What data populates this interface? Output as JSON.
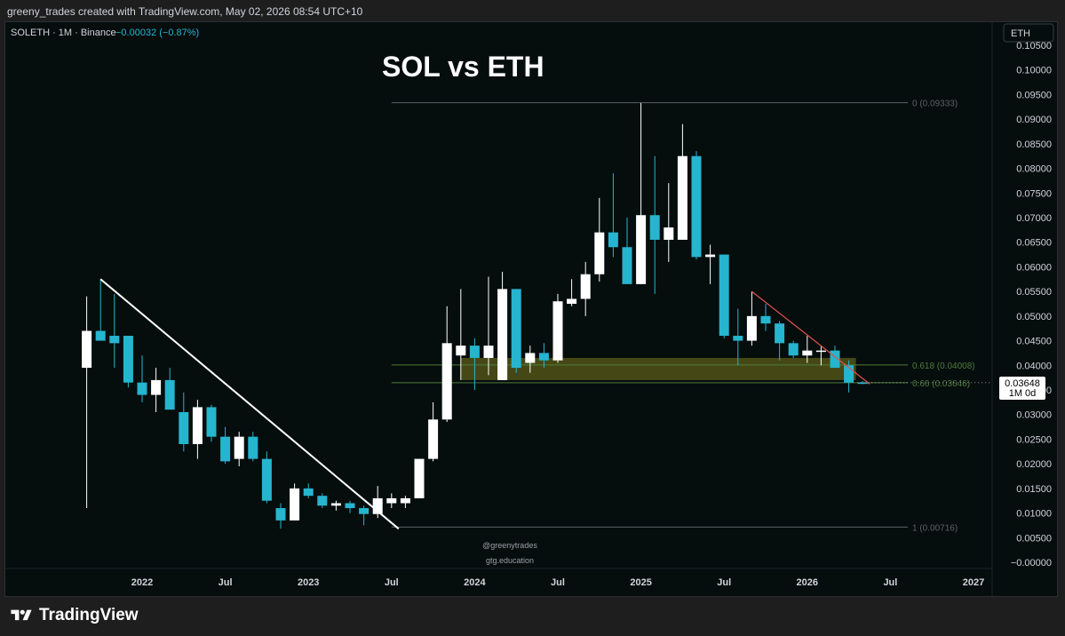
{
  "header": {
    "creator_line": "greeny_trades created with TradingView.com, May 02, 2026 08:54 UTC+10"
  },
  "legend": {
    "symbol": "SOLETH · 1M · Binance",
    "change": "−0.00032 (−0.87%)"
  },
  "currency_button": "ETH",
  "overlay_title": "SOL vs ETH",
  "watermarks": [
    "@greenytrades",
    "gtg.education"
  ],
  "price_tag": {
    "price": "0.03648",
    "interval": "1M 0d"
  },
  "footer": {
    "brand": "TradingView"
  },
  "colors": {
    "background": "#060d0d",
    "up_candle": "#ffffff",
    "down_candle": "#26b5cf",
    "fib_zone": "#7a7a1e",
    "resistance_line": "#e05252",
    "trendline": "#ffffff"
  },
  "chart_data": {
    "type": "candlestick",
    "title": "SOL vs ETH",
    "symbol": "SOLETH",
    "interval": "1M",
    "exchange": "Binance",
    "ylim": [
      0,
      0.105
    ],
    "xlim": [
      "2021-08",
      "2027-03"
    ],
    "yticks": [
      "0.10500",
      "0.10000",
      "0.09500",
      "0.09000",
      "0.08500",
      "0.08000",
      "0.07500",
      "0.07000",
      "0.06500",
      "0.06000",
      "0.05500",
      "0.05000",
      "0.04500",
      "0.04000",
      "0.03500",
      "0.03000",
      "0.02500",
      "0.02000",
      "0.01500",
      "0.01000",
      "0.00500",
      "−0.00000"
    ],
    "xticks": [
      {
        "label": "2022",
        "date": "2022-01",
        "bold": true
      },
      {
        "label": "Jul",
        "date": "2022-07",
        "bold": false
      },
      {
        "label": "2023",
        "date": "2023-01",
        "bold": true
      },
      {
        "label": "Jul",
        "date": "2023-07",
        "bold": false
      },
      {
        "label": "2024",
        "date": "2024-01",
        "bold": true
      },
      {
        "label": "Jul",
        "date": "2024-07",
        "bold": false
      },
      {
        "label": "2025",
        "date": "2025-01",
        "bold": true
      },
      {
        "label": "Jul",
        "date": "2025-07",
        "bold": false
      },
      {
        "label": "2026",
        "date": "2026-01",
        "bold": true
      },
      {
        "label": "Jul",
        "date": "2026-07",
        "bold": false
      },
      {
        "label": "2027",
        "date": "2027-01",
        "bold": true
      }
    ],
    "candles": [
      {
        "date": "2021-09",
        "o": 0.0395,
        "h": 0.054,
        "l": 0.011,
        "c": 0.047
      },
      {
        "date": "2021-10",
        "o": 0.047,
        "h": 0.0575,
        "l": 0.045,
        "c": 0.045
      },
      {
        "date": "2021-11",
        "o": 0.046,
        "h": 0.0545,
        "l": 0.0395,
        "c": 0.0445
      },
      {
        "date": "2021-12",
        "o": 0.046,
        "h": 0.046,
        "l": 0.0355,
        "c": 0.0365
      },
      {
        "date": "2022-01",
        "o": 0.0365,
        "h": 0.042,
        "l": 0.0325,
        "c": 0.034
      },
      {
        "date": "2022-02",
        "o": 0.034,
        "h": 0.0395,
        "l": 0.0305,
        "c": 0.037
      },
      {
        "date": "2022-03",
        "o": 0.037,
        "h": 0.0395,
        "l": 0.031,
        "c": 0.031
      },
      {
        "date": "2022-04",
        "o": 0.0305,
        "h": 0.0345,
        "l": 0.0225,
        "c": 0.024
      },
      {
        "date": "2022-05",
        "o": 0.024,
        "h": 0.033,
        "l": 0.021,
        "c": 0.0315
      },
      {
        "date": "2022-06",
        "o": 0.0315,
        "h": 0.032,
        "l": 0.0245,
        "c": 0.0255
      },
      {
        "date": "2022-07",
        "o": 0.0255,
        "h": 0.0275,
        "l": 0.02,
        "c": 0.0205
      },
      {
        "date": "2022-08",
        "o": 0.021,
        "h": 0.0265,
        "l": 0.0195,
        "c": 0.0255
      },
      {
        "date": "2022-09",
        "o": 0.0255,
        "h": 0.0265,
        "l": 0.0205,
        "c": 0.021
      },
      {
        "date": "2022-10",
        "o": 0.021,
        "h": 0.0225,
        "l": 0.012,
        "c": 0.0125
      },
      {
        "date": "2022-11",
        "o": 0.011,
        "h": 0.012,
        "l": 0.0068,
        "c": 0.0085
      },
      {
        "date": "2022-12",
        "o": 0.0085,
        "h": 0.016,
        "l": 0.0085,
        "c": 0.015
      },
      {
        "date": "2023-01",
        "o": 0.015,
        "h": 0.016,
        "l": 0.013,
        "c": 0.0135
      },
      {
        "date": "2023-02",
        "o": 0.0135,
        "h": 0.014,
        "l": 0.011,
        "c": 0.0115
      },
      {
        "date": "2023-03",
        "o": 0.0115,
        "h": 0.0125,
        "l": 0.0105,
        "c": 0.012
      },
      {
        "date": "2023-04",
        "o": 0.012,
        "h": 0.0125,
        "l": 0.01,
        "c": 0.011
      },
      {
        "date": "2023-05",
        "o": 0.011,
        "h": 0.0115,
        "l": 0.0075,
        "c": 0.0098
      },
      {
        "date": "2023-06",
        "o": 0.0098,
        "h": 0.0155,
        "l": 0.009,
        "c": 0.013
      },
      {
        "date": "2023-07",
        "o": 0.012,
        "h": 0.014,
        "l": 0.011,
        "c": 0.013
      },
      {
        "date": "2023-08",
        "o": 0.012,
        "h": 0.0135,
        "l": 0.011,
        "c": 0.013
      },
      {
        "date": "2023-09",
        "o": 0.013,
        "h": 0.021,
        "l": 0.013,
        "c": 0.021
      },
      {
        "date": "2023-10",
        "o": 0.021,
        "h": 0.0325,
        "l": 0.0205,
        "c": 0.029
      },
      {
        "date": "2023-11",
        "o": 0.029,
        "h": 0.052,
        "l": 0.0285,
        "c": 0.0445
      },
      {
        "date": "2023-12",
        "o": 0.042,
        "h": 0.0555,
        "l": 0.037,
        "c": 0.044
      },
      {
        "date": "2024-01",
        "o": 0.044,
        "h": 0.0455,
        "l": 0.035,
        "c": 0.0415
      },
      {
        "date": "2024-02",
        "o": 0.0415,
        "h": 0.058,
        "l": 0.038,
        "c": 0.044
      },
      {
        "date": "2024-03",
        "o": 0.037,
        "h": 0.059,
        "l": 0.037,
        "c": 0.0555
      },
      {
        "date": "2024-04",
        "o": 0.0555,
        "h": 0.0555,
        "l": 0.0385,
        "c": 0.0395
      },
      {
        "date": "2024-05",
        "o": 0.0405,
        "h": 0.044,
        "l": 0.0385,
        "c": 0.0425
      },
      {
        "date": "2024-06",
        "o": 0.0425,
        "h": 0.0445,
        "l": 0.0395,
        "c": 0.041
      },
      {
        "date": "2024-07",
        "o": 0.041,
        "h": 0.0545,
        "l": 0.0405,
        "c": 0.053
      },
      {
        "date": "2024-08",
        "o": 0.0525,
        "h": 0.0575,
        "l": 0.052,
        "c": 0.0535
      },
      {
        "date": "2024-09",
        "o": 0.0535,
        "h": 0.061,
        "l": 0.05,
        "c": 0.0585
      },
      {
        "date": "2024-10",
        "o": 0.0585,
        "h": 0.074,
        "l": 0.057,
        "c": 0.067
      },
      {
        "date": "2024-11",
        "o": 0.067,
        "h": 0.079,
        "l": 0.062,
        "c": 0.064
      },
      {
        "date": "2024-12",
        "o": 0.064,
        "h": 0.07,
        "l": 0.0565,
        "c": 0.0565
      },
      {
        "date": "2025-01",
        "o": 0.0565,
        "h": 0.0933,
        "l": 0.0565,
        "c": 0.0705
      },
      {
        "date": "2025-02",
        "o": 0.0705,
        "h": 0.0825,
        "l": 0.0545,
        "c": 0.0655
      },
      {
        "date": "2025-03",
        "o": 0.0655,
        "h": 0.077,
        "l": 0.061,
        "c": 0.068
      },
      {
        "date": "2025-04",
        "o": 0.0655,
        "h": 0.089,
        "l": 0.066,
        "c": 0.0825
      },
      {
        "date": "2025-05",
        "o": 0.0825,
        "h": 0.0835,
        "l": 0.0615,
        "c": 0.062
      },
      {
        "date": "2025-06",
        "o": 0.062,
        "h": 0.0645,
        "l": 0.0565,
        "c": 0.0625
      },
      {
        "date": "2025-07",
        "o": 0.0625,
        "h": 0.0625,
        "l": 0.0455,
        "c": 0.046
      },
      {
        "date": "2025-08",
        "o": 0.046,
        "h": 0.0515,
        "l": 0.04,
        "c": 0.045
      },
      {
        "date": "2025-09",
        "o": 0.045,
        "h": 0.055,
        "l": 0.044,
        "c": 0.05
      },
      {
        "date": "2025-10",
        "o": 0.05,
        "h": 0.0525,
        "l": 0.047,
        "c": 0.0485
      },
      {
        "date": "2025-11",
        "o": 0.0485,
        "h": 0.049,
        "l": 0.041,
        "c": 0.0445
      },
      {
        "date": "2025-12",
        "o": 0.0445,
        "h": 0.045,
        "l": 0.0415,
        "c": 0.042
      },
      {
        "date": "2026-01",
        "o": 0.042,
        "h": 0.046,
        "l": 0.0405,
        "c": 0.043
      },
      {
        "date": "2026-02",
        "o": 0.043,
        "h": 0.044,
        "l": 0.04,
        "c": 0.043
      },
      {
        "date": "2026-03",
        "o": 0.043,
        "h": 0.044,
        "l": 0.0395,
        "c": 0.0395
      },
      {
        "date": "2026-04",
        "o": 0.04,
        "h": 0.041,
        "l": 0.0345,
        "c": 0.0365
      },
      {
        "date": "2026-05",
        "o": 0.0365,
        "h": 0.0368,
        "l": 0.0362,
        "c": 0.03648
      }
    ],
    "fib_levels": [
      {
        "label": "0 (0.09333)",
        "value": 0.09333,
        "color": "#5d6063"
      },
      {
        "label": "0.618 (0.04008)",
        "value": 0.04008,
        "color": "#4e7d3a"
      },
      {
        "label": "0.66 (0.03646)",
        "value": 0.03646,
        "color": "#4e7d3a"
      },
      {
        "label": "1 (0.00716)",
        "value": 0.00716,
        "color": "#5d6063"
      }
    ],
    "fib_start": "2023-07",
    "fib_zone": {
      "top": 0.0415,
      "bottom": 0.037,
      "start": "2023-12",
      "end": "2026-04"
    },
    "trendlines": [
      {
        "name": "downtrend-2022",
        "from": {
          "date": "2021-10",
          "value": 0.0575
        },
        "to": {
          "date": "2023-07",
          "value": 0.0068
        },
        "color": "#ffffff"
      },
      {
        "name": "downtrend-2025",
        "from": {
          "date": "2025-09",
          "value": 0.055
        },
        "to": {
          "date": "2026-05",
          "value": 0.0362
        },
        "color": "#e05252"
      }
    ]
  }
}
